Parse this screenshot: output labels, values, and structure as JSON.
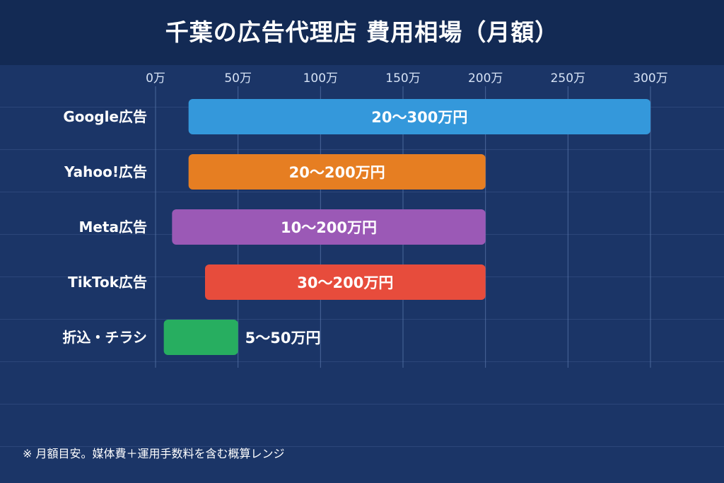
{
  "header": {
    "title": "千葉の広告代理店 費用相場（月額）"
  },
  "colors": {
    "background": "#1b3567",
    "header": "#132a54",
    "grid": "#5f7bb0",
    "text": "#ffffff"
  },
  "chart_data": {
    "type": "bar",
    "orientation": "horizontal",
    "range_bars": true,
    "xlim": [
      0,
      300
    ],
    "xticks": [
      0,
      50,
      100,
      150,
      200,
      250,
      300
    ],
    "xtick_labels": [
      "0万",
      "50万",
      "100万",
      "150万",
      "200万",
      "250万",
      "300万"
    ],
    "grid": true,
    "categories": [
      "Google広告",
      "Yahoo!広告",
      "Meta広告",
      "TikTok広告",
      "折込・チラシ"
    ],
    "series": [
      {
        "ranges": [
          [
            20,
            300
          ],
          [
            20,
            200
          ],
          [
            10,
            200
          ],
          [
            30,
            200
          ],
          [
            5,
            50
          ]
        ],
        "labels": [
          "20〜300万円",
          "20〜200万円",
          "10〜200万円",
          "30〜200万円",
          "5〜50万円"
        ],
        "colors": [
          "#3498db",
          "#e67e22",
          "#9b59b6",
          "#e74c3c",
          "#27ae60"
        ]
      }
    ]
  },
  "footer": {
    "note": "※ 月額目安。媒体費＋運用手数料を含む概算レンジ"
  }
}
